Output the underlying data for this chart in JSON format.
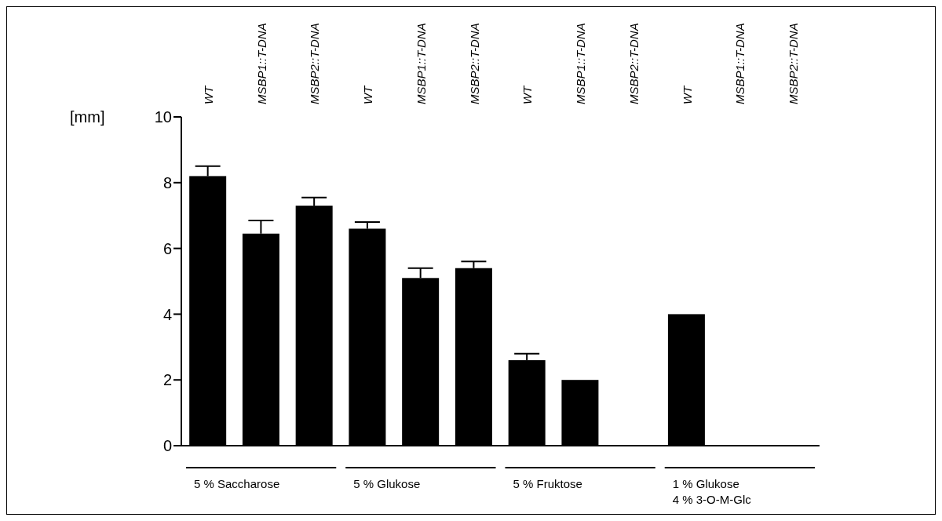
{
  "chart_data": {
    "type": "bar",
    "categories": [
      "WT",
      "MSBP1::T-DNA",
      "MSBP2::T-DNA",
      "WT",
      "MSBP1::T-DNA",
      "MSBP2::T-DNA",
      "WT",
      "MSBP1::T-DNA",
      "MSBP2::T-DNA",
      "WT",
      "MSBP1::T-DNA",
      "MSBP2::T-DNA"
    ],
    "values": [
      8.2,
      6.45,
      7.3,
      6.6,
      5.1,
      5.4,
      2.6,
      2.0,
      null,
      4.0,
      null,
      null
    ],
    "errors": [
      [
        8.2,
        8.5
      ],
      [
        6.45,
        6.85
      ],
      [
        7.3,
        7.55
      ],
      [
        6.6,
        6.8
      ],
      [
        5.1,
        5.4
      ],
      [
        5.4,
        5.6
      ],
      [
        2.6,
        2.8
      ],
      null,
      null,
      null,
      null,
      null
    ],
    "color": "#000000",
    "ylabel": "[mm]",
    "ylim": [
      0,
      10
    ],
    "yticks": [
      0,
      2,
      4,
      6,
      8,
      10
    ],
    "annotations": [
      "5 % Saccharose",
      "5 % Glukose",
      "5 % Fruktose",
      "1 % Glukose\n4 % 3-O-M-Glc"
    ],
    "grid": false,
    "legend": false
  }
}
